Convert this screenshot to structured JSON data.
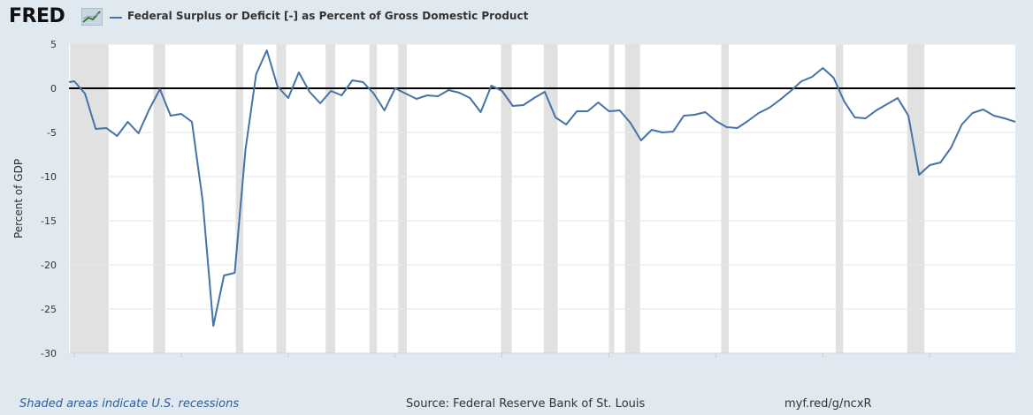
{
  "header": {
    "logo_text": "FRED",
    "logo_icon": "line-graph-icon",
    "series_title": "Federal Surplus or Deficit [-] as Percent of Gross Domestic Product"
  },
  "footer": {
    "recession_note": "Shaded areas indicate U.S. recessions",
    "source": "Source: Federal Reserve Bank of St. Louis",
    "short_url": "myf.red/g/ncxR"
  },
  "colors": {
    "line": "#4572a7",
    "recession": "#e1e1e1",
    "background": "#e1e9f0",
    "plot": "#ffffff"
  },
  "chart_data": {
    "type": "line",
    "ylabel": "Percent of GDP",
    "xlabel": "",
    "xlim": [
      1929.5,
      2018
    ],
    "ylim": [
      -30,
      5
    ],
    "x_ticks": [
      1930,
      1940,
      1950,
      1960,
      1970,
      1980,
      1990,
      2000,
      2010
    ],
    "y_ticks": [
      5,
      0,
      -5,
      -10,
      -15,
      -20,
      -25,
      -30
    ],
    "grid": true,
    "zero_line": true,
    "recessions": [
      [
        1929.6,
        1933.2
      ],
      [
        1937.4,
        1938.5
      ],
      [
        1945.1,
        1945.8
      ],
      [
        1948.9,
        1949.8
      ],
      [
        1953.5,
        1954.4
      ],
      [
        1957.6,
        1958.3
      ],
      [
        1960.3,
        1961.1
      ],
      [
        1969.9,
        1970.9
      ],
      [
        1973.9,
        1975.2
      ],
      [
        1980.0,
        1980.5
      ],
      [
        1981.5,
        1982.9
      ],
      [
        1990.5,
        1991.2
      ],
      [
        2001.2,
        2001.9
      ],
      [
        2007.9,
        2009.5
      ]
    ],
    "series": [
      {
        "x": [
          1929,
          1930,
          1931,
          1932,
          1933,
          1934,
          1935,
          1936,
          1937,
          1938,
          1939,
          1940,
          1941,
          1942,
          1943,
          1944,
          1945,
          1946,
          1947,
          1948,
          1949,
          1950,
          1951,
          1952,
          1953,
          1954,
          1955,
          1956,
          1957,
          1958,
          1959,
          1960,
          1961,
          1962,
          1963,
          1964,
          1965,
          1966,
          1967,
          1968,
          1969,
          1970,
          1971,
          1972,
          1973,
          1974,
          1975,
          1976,
          1977,
          1978,
          1979,
          1980,
          1981,
          1982,
          1983,
          1984,
          1985,
          1986,
          1987,
          1988,
          1989,
          1990,
          1991,
          1992,
          1993,
          1994,
          1995,
          1996,
          1997,
          1998,
          1999,
          2000,
          2001,
          2002,
          2003,
          2004,
          2005,
          2006,
          2007,
          2008,
          2009,
          2010,
          2011,
          2012,
          2013,
          2014,
          2015,
          2016,
          2017,
          2018
        ],
        "values": [
          0.7,
          0.8,
          -0.6,
          -4.6,
          -4.5,
          -5.4,
          -3.8,
          -5.1,
          -2.4,
          -0.1,
          -3.1,
          -2.9,
          -3.8,
          -12.7,
          -26.9,
          -21.2,
          -20.9,
          -7.0,
          1.6,
          4.3,
          0.2,
          -1.1,
          1.8,
          -0.4,
          -1.7,
          -0.3,
          -0.8,
          0.9,
          0.7,
          -0.6,
          -2.5,
          0.0,
          -0.6,
          -1.2,
          -0.8,
          -0.9,
          -0.2,
          -0.5,
          -1.1,
          -2.7,
          0.3,
          -0.3,
          -2.0,
          -1.9,
          -1.1,
          -0.4,
          -3.3,
          -4.1,
          -2.6,
          -2.6,
          -1.6,
          -2.6,
          -2.5,
          -3.9,
          -5.9,
          -4.7,
          -5.0,
          -4.9,
          -3.1,
          -3.0,
          -2.7,
          -3.7,
          -4.4,
          -4.5,
          -3.7,
          -2.8,
          -2.2,
          -1.3,
          -0.3,
          0.8,
          1.3,
          2.3,
          1.2,
          -1.5,
          -3.3,
          -3.4,
          -2.5,
          -1.8,
          -1.1,
          -3.1,
          -9.8,
          -8.7,
          -8.4,
          -6.7,
          -4.1,
          -2.8,
          -2.4,
          -3.1,
          -3.4,
          -3.8
        ]
      }
    ]
  }
}
